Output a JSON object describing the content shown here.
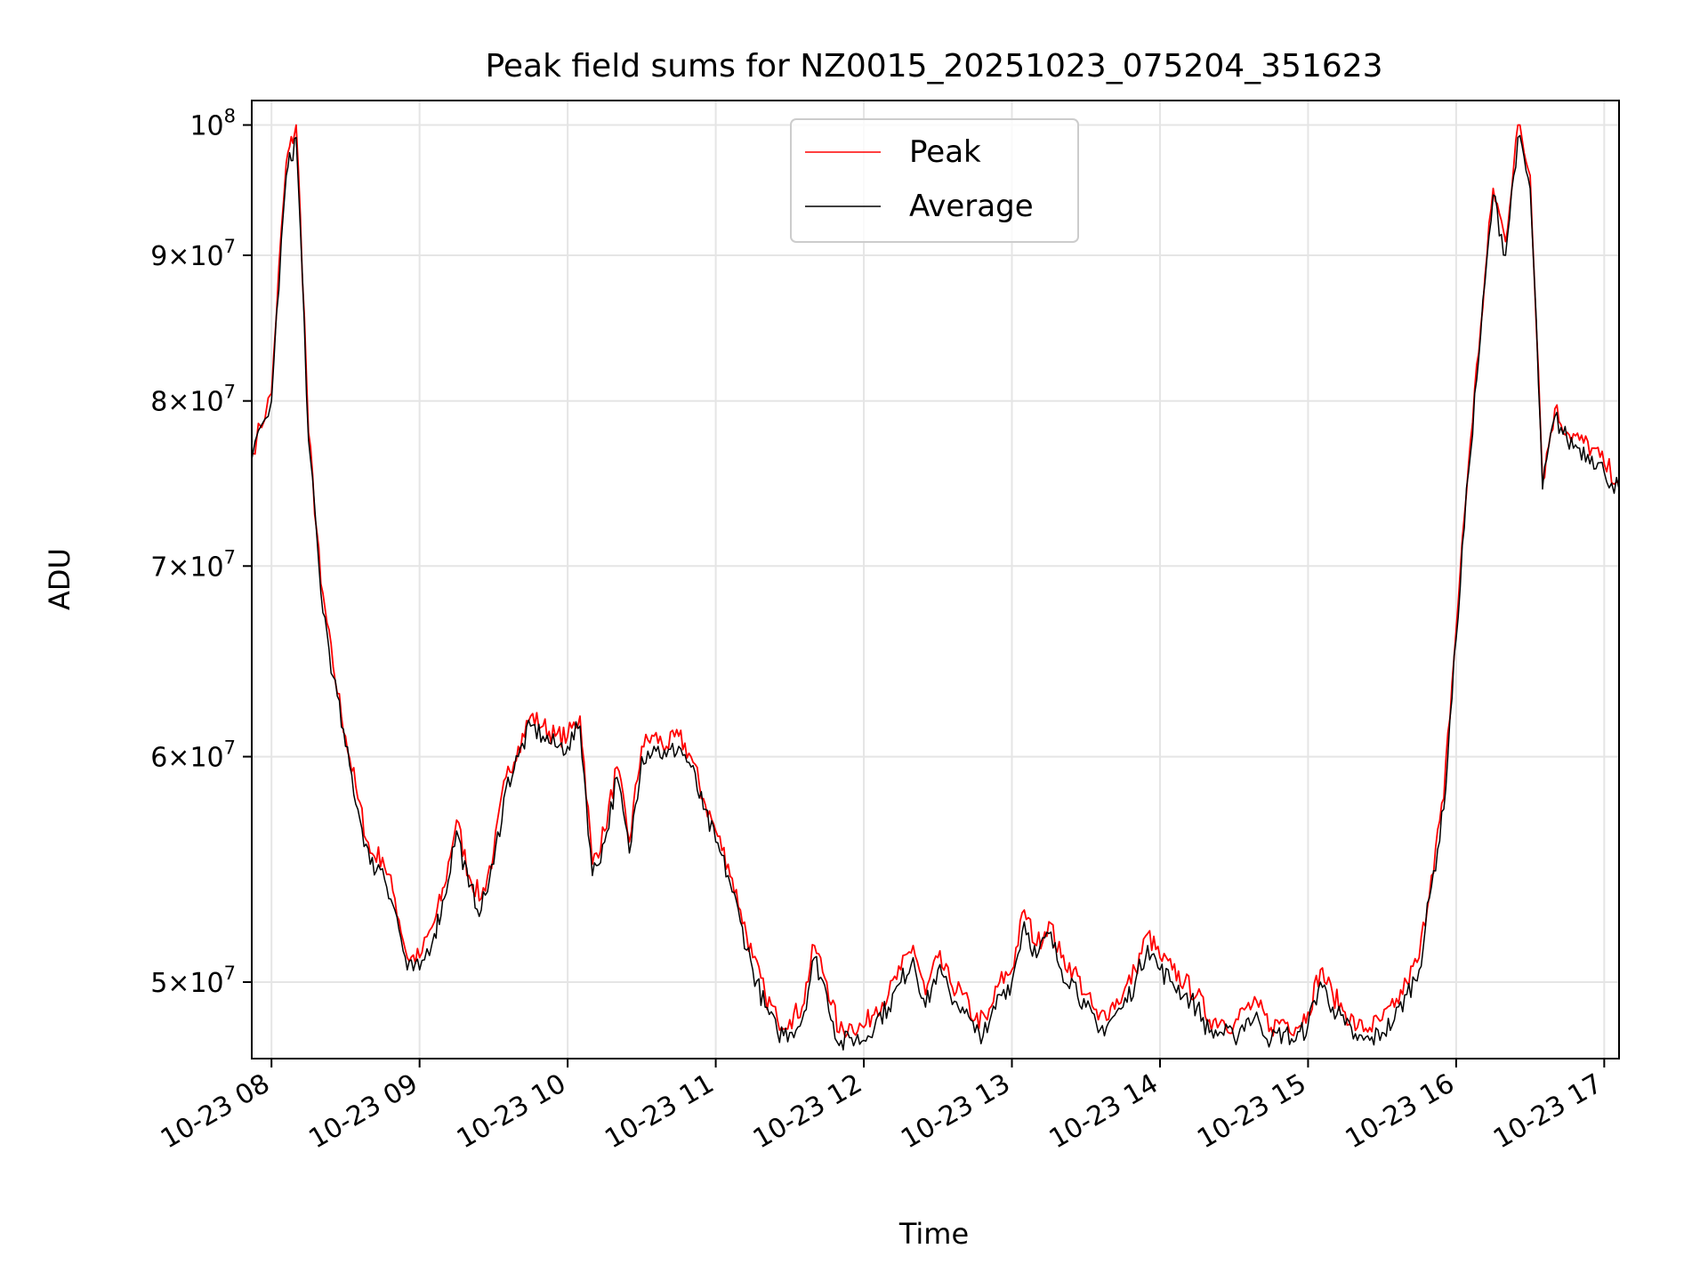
{
  "chart_data": {
    "type": "line",
    "title": "Peak field sums for NZ0015_20251023_075204_351623",
    "xlabel": "Time",
    "ylabel": "ADU",
    "y_scale": "log",
    "grid": true,
    "legend_placement": "top-center",
    "xlim": [
      "2025-10-23 07:52",
      "2025-10-23 17:06"
    ],
    "ylim": [
      47000000,
      102000000
    ],
    "x_ticks": [
      "10-23 08",
      "10-23 09",
      "10-23 10",
      "10-23 11",
      "10-23 12",
      "10-23 13",
      "10-23 14",
      "10-23 15",
      "10-23 16",
      "10-23 17"
    ],
    "y_ticks": [
      {
        "value": 50000000,
        "mantissa": "5",
        "exponent": "7"
      },
      {
        "value": 60000000,
        "mantissa": "6",
        "exponent": "7"
      },
      {
        "value": 70000000,
        "mantissa": "7",
        "exponent": "7"
      },
      {
        "value": 80000000,
        "mantissa": "8",
        "exponent": "7"
      },
      {
        "value": 90000000,
        "mantissa": "9",
        "exponent": "7"
      },
      {
        "value": 100000000,
        "mantissa": "",
        "exponent": "8"
      }
    ],
    "x": [
      "07:52",
      "08:00",
      "08:06",
      "08:10",
      "08:15",
      "08:20",
      "08:25",
      "08:30",
      "08:35",
      "08:40",
      "08:45",
      "08:50",
      "08:55",
      "09:00",
      "09:06",
      "09:10",
      "09:15",
      "09:20",
      "09:25",
      "09:30",
      "09:35",
      "09:40",
      "09:45",
      "09:50",
      "09:55",
      "10:00",
      "10:05",
      "10:10",
      "10:15",
      "10:20",
      "10:25",
      "10:30",
      "10:35",
      "10:40",
      "10:45",
      "10:50",
      "10:55",
      "11:00",
      "11:05",
      "11:10",
      "11:15",
      "11:20",
      "11:25",
      "11:30",
      "11:35",
      "11:40",
      "11:45",
      "11:50",
      "11:55",
      "12:00",
      "12:05",
      "12:10",
      "12:15",
      "12:20",
      "12:25",
      "12:30",
      "12:35",
      "12:40",
      "12:45",
      "12:50",
      "12:55",
      "13:00",
      "13:05",
      "13:10",
      "13:15",
      "13:20",
      "13:25",
      "13:30",
      "13:35",
      "13:40",
      "13:45",
      "13:50",
      "13:55",
      "14:00",
      "14:05",
      "14:10",
      "14:15",
      "14:20",
      "14:25",
      "14:30",
      "14:35",
      "14:40",
      "14:45",
      "14:50",
      "14:55",
      "15:00",
      "15:05",
      "15:10",
      "15:15",
      "15:20",
      "15:25",
      "15:30",
      "15:35",
      "15:40",
      "15:45",
      "15:50",
      "15:55",
      "16:00",
      "16:05",
      "16:10",
      "16:15",
      "16:20",
      "16:25",
      "16:30",
      "16:35",
      "16:40",
      "16:45",
      "16:50",
      "16:55",
      "17:00",
      "17:06"
    ],
    "series": [
      {
        "name": "Peak",
        "color": "#ff0000",
        "values": [
          76700000,
          80500000,
          97000000,
          100000000,
          78000000,
          69000000,
          64500000,
          61000000,
          58000000,
          55500000,
          55300000,
          53500000,
          51000000,
          51000000,
          52500000,
          54000000,
          57000000,
          54500000,
          53500000,
          55500000,
          59000000,
          60500000,
          62000000,
          61500000,
          61000000,
          61000000,
          62000000,
          55000000,
          56500000,
          59500000,
          56000000,
          60500000,
          61000000,
          60500000,
          61000000,
          60000000,
          58000000,
          56500000,
          55000000,
          53000000,
          51000000,
          49500000,
          48500000,
          48500000,
          49000000,
          51500000,
          50000000,
          48000000,
          48300000,
          48200000,
          49000000,
          49500000,
          50500000,
          51500000,
          49500000,
          51000000,
          50000000,
          49500000,
          48500000,
          48500000,
          50000000,
          50500000,
          53000000,
          51500000,
          52500000,
          51000000,
          50500000,
          49500000,
          48500000,
          49000000,
          49500000,
          50500000,
          52000000,
          51000000,
          50500000,
          50000000,
          49500000,
          48500000,
          48500000,
          48300000,
          49000000,
          49000000,
          48200000,
          48500000,
          48200000,
          48800000,
          50500000,
          49500000,
          48800000,
          48200000,
          48200000,
          48500000,
          49000000,
          50000000,
          51000000,
          54500000,
          58000000,
          66500000,
          76000000,
          85000000,
          95000000,
          91000000,
          100000000,
          96000000,
          75000000,
          79500000,
          78000000,
          77500000,
          77000000,
          76000000,
          75000000
        ]
      },
      {
        "name": "Average",
        "color": "#000000",
        "values": [
          76300000,
          80000000,
          96000000,
          99000000,
          77500000,
          68500000,
          64000000,
          60500000,
          57500000,
          55000000,
          54800000,
          53000000,
          50500000,
          50500000,
          52000000,
          53500000,
          56500000,
          54000000,
          53000000,
          55000000,
          58500000,
          60000000,
          61500000,
          61000000,
          60500000,
          60500000,
          61500000,
          54500000,
          56000000,
          59000000,
          55500000,
          60000000,
          60500000,
          60000000,
          60500000,
          59500000,
          57500000,
          56000000,
          54500000,
          52500000,
          50500000,
          49000000,
          48000000,
          48000000,
          48500000,
          51000000,
          49500000,
          47500000,
          47800000,
          47700000,
          48500000,
          49000000,
          50000000,
          51000000,
          49000000,
          50500000,
          49500000,
          49000000,
          48000000,
          48000000,
          49500000,
          50000000,
          52500000,
          51000000,
          52000000,
          50500000,
          50000000,
          49000000,
          48000000,
          48500000,
          49000000,
          50000000,
          51500000,
          50500000,
          50000000,
          49500000,
          49000000,
          48000000,
          48000000,
          47800000,
          48500000,
          48500000,
          47700000,
          48000000,
          47700000,
          48300000,
          50000000,
          49000000,
          48300000,
          47700000,
          47700000,
          48000000,
          48500000,
          49500000,
          50500000,
          54000000,
          57500000,
          66000000,
          75500000,
          84500000,
          94500000,
          90000000,
          99000000,
          95000000,
          74500000,
          79000000,
          77500000,
          77000000,
          76500000,
          75500000,
          74500000
        ]
      }
    ]
  }
}
